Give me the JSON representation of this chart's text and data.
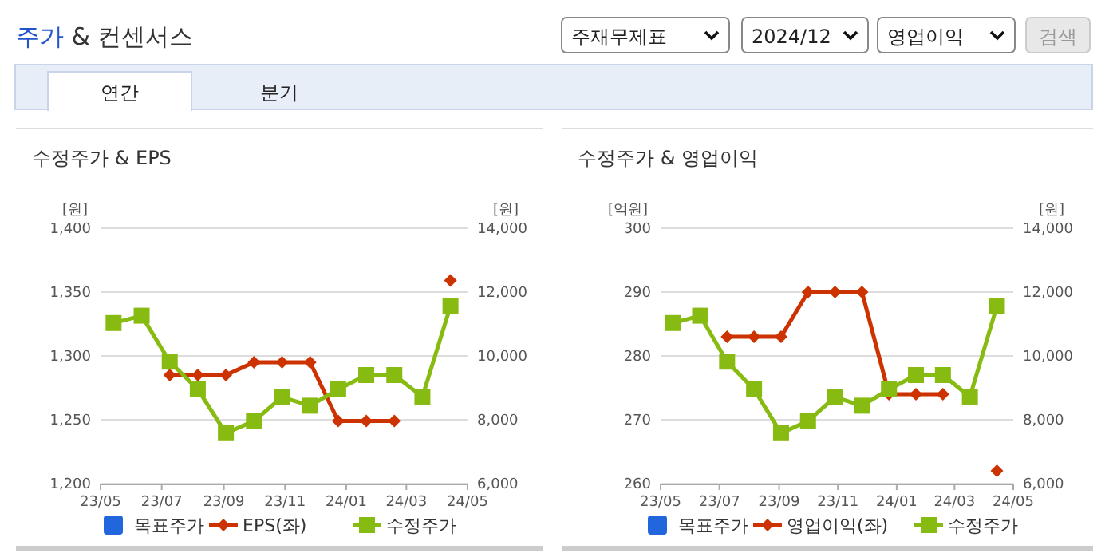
{
  "chart_data": [
    {
      "type": "other",
      "title": "주가 & 컨센서스",
      "annotations": [
        "주재무제표",
        "2024/12",
        "영업이익",
        "검색",
        "연간",
        "분기"
      ]
    },
    {
      "type": "line",
      "title": "수정주가 & EPS",
      "ylabel": "[원]",
      "y2label": "[원]",
      "x": [
        "2023-05-14",
        "2023-06-11",
        "2023-07-09",
        "2023-08-06",
        "2023-09-03",
        "2023-10-01",
        "2023-10-29",
        "2023-11-26",
        "2023-12-24",
        "2024-01-21",
        "2024-02-18",
        "2024-03-17",
        "2024-04-14"
      ],
      "xlim": [
        "2023-05",
        "2024-05"
      ],
      "xticks": [
        {
          "value": "2023-05",
          "label": "23/05"
        },
        {
          "value": "2023-07",
          "label": "23/07"
        },
        {
          "value": "2023-09",
          "label": "23/09"
        },
        {
          "value": "2023-11",
          "label": "23/11"
        },
        {
          "value": "2024-01",
          "label": "24/01"
        },
        {
          "value": "2024-03",
          "label": "24/03"
        },
        {
          "value": "2024-05",
          "label": "24/05"
        }
      ],
      "ylim": [
        1200,
        1400
      ],
      "yticks": [
        {
          "value": 1200,
          "label": "1,200"
        },
        {
          "value": 1250,
          "label": "1,250"
        },
        {
          "value": 1300,
          "label": "1,300"
        },
        {
          "value": 1350,
          "label": "1,350"
        },
        {
          "value": 1400,
          "label": "1,400"
        }
      ],
      "y2lim": [
        6000,
        14000
      ],
      "y2ticks": [
        {
          "value": 6000,
          "label": "6,000"
        },
        {
          "value": 8000,
          "label": "8,000"
        },
        {
          "value": 10000,
          "label": "10,000"
        },
        {
          "value": 12000,
          "label": "12,000"
        },
        {
          "value": 14000,
          "label": "14,000"
        }
      ],
      "grid": "y",
      "legend": "bottom",
      "series": [
        {
          "name": "목표주가",
          "color": "#2266dd",
          "marker": "square",
          "values": [
            null,
            null,
            null,
            null,
            null,
            null,
            null,
            null,
            null,
            null,
            null,
            null,
            null
          ]
        },
        {
          "name": "EPS(좌)",
          "color": "#cc3300",
          "marker": "diamond",
          "values": [
            null,
            null,
            1285,
            1285,
            1285,
            1295,
            1295,
            1295,
            1249,
            1249,
            1249,
            null,
            1359
          ]
        },
        {
          "name": "수정주가",
          "color": "#88bb11",
          "marker": "square",
          "axis": "y2",
          "values": [
            11030,
            11260,
            9820,
            8950,
            7580,
            7960,
            8710,
            8440,
            8950,
            9400,
            9400,
            8720,
            11560
          ]
        }
      ]
    },
    {
      "type": "line",
      "title": "수정주가 & 영업이익",
      "ylabel": "[억원]",
      "y2label": "[원]",
      "x": [
        "2023-05-14",
        "2023-06-11",
        "2023-07-09",
        "2023-08-06",
        "2023-09-03",
        "2023-10-01",
        "2023-10-29",
        "2023-11-26",
        "2023-12-24",
        "2024-01-21",
        "2024-02-18",
        "2024-03-17",
        "2024-04-14"
      ],
      "xlim": [
        "2023-05",
        "2024-05"
      ],
      "xticks": [
        {
          "value": "2023-05",
          "label": "23/05"
        },
        {
          "value": "2023-07",
          "label": "23/07"
        },
        {
          "value": "2023-09",
          "label": "23/09"
        },
        {
          "value": "2023-11",
          "label": "23/11"
        },
        {
          "value": "2024-01",
          "label": "24/01"
        },
        {
          "value": "2024-03",
          "label": "24/03"
        },
        {
          "value": "2024-05",
          "label": "24/05"
        }
      ],
      "ylim": [
        260,
        300
      ],
      "yticks": [
        260,
        270,
        280,
        290,
        300
      ],
      "y2lim": [
        6000,
        14000
      ],
      "y2ticks": [
        {
          "value": 6000,
          "label": "6,000"
        },
        {
          "value": 8000,
          "label": "8,000"
        },
        {
          "value": 10000,
          "label": "10,000"
        },
        {
          "value": 12000,
          "label": "12,000"
        },
        {
          "value": 14000,
          "label": "14,000"
        }
      ],
      "grid": "y",
      "legend": "bottom",
      "series": [
        {
          "name": "목표주가",
          "color": "#2266dd",
          "marker": "square",
          "values": [
            null,
            null,
            null,
            null,
            null,
            null,
            null,
            null,
            null,
            null,
            null,
            null,
            null
          ]
        },
        {
          "name": "영업이익(좌)",
          "color": "#cc3300",
          "marker": "diamond",
          "values": [
            null,
            null,
            283,
            283,
            283,
            290,
            290,
            290,
            274,
            274,
            274,
            null,
            262
          ]
        },
        {
          "name": "수정주가",
          "color": "#88bb11",
          "marker": "square",
          "axis": "y2",
          "values": [
            11030,
            11260,
            9820,
            8950,
            7580,
            7960,
            8710,
            8440,
            8950,
            9400,
            9400,
            8720,
            11560
          ]
        }
      ]
    }
  ]
}
